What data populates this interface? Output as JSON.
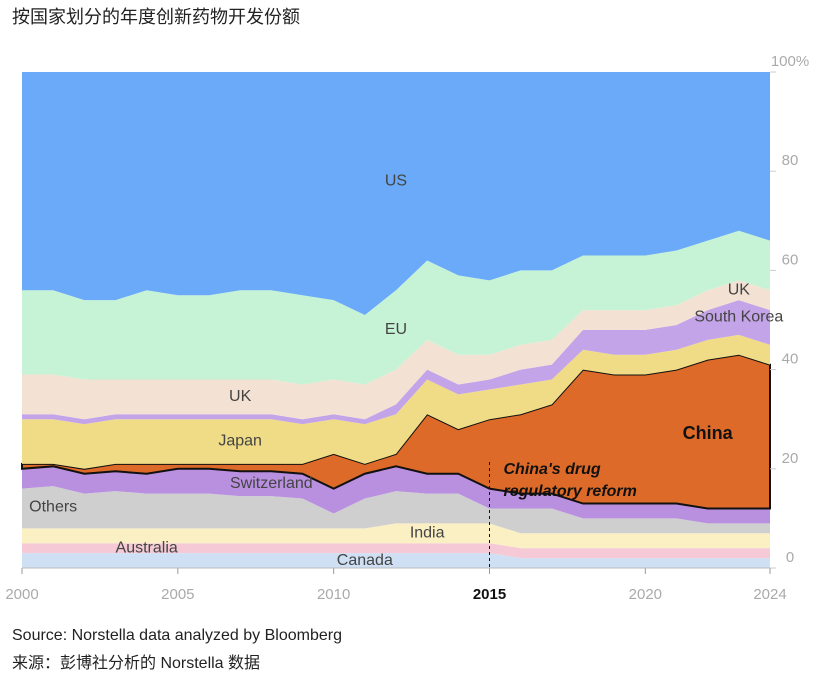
{
  "chart_data": {
    "type": "area",
    "stacked": true,
    "title": "按国家划分的年度创新药物开发份额",
    "source": "Source: Norstella data analyzed by Bloomberg",
    "source_cn": "来源：彭博社分析的 Norstella 数据",
    "annotation": [
      "China's drug",
      "regulatory reform"
    ],
    "annotation_x": 2015,
    "x": [
      2000,
      2001,
      2002,
      2003,
      2004,
      2005,
      2006,
      2007,
      2008,
      2009,
      2010,
      2011,
      2012,
      2013,
      2014,
      2015,
      2016,
      2017,
      2018,
      2019,
      2020,
      2021,
      2022,
      2023,
      2024
    ],
    "xlim": [
      2000,
      2024
    ],
    "xticks": [
      2000,
      2005,
      2010,
      2015,
      2020,
      2024
    ],
    "ylim": [
      0,
      100
    ],
    "yticks": [
      0,
      20,
      40,
      60,
      80,
      {
        "value": 100,
        "label": "100%"
      }
    ],
    "series": [
      {
        "name": "Canada",
        "color": "#cfe0f5",
        "values": [
          3,
          3,
          3,
          3,
          3,
          3,
          3,
          3,
          3,
          3,
          3,
          3,
          3,
          3,
          3,
          3,
          2,
          2,
          2,
          2,
          2,
          2,
          2,
          2,
          2
        ]
      },
      {
        "name": "Australia",
        "color": "#f5cad6",
        "values": [
          2,
          2,
          2,
          2,
          2,
          2,
          2,
          2,
          2,
          2,
          2,
          2,
          2,
          2,
          2,
          2,
          2,
          2,
          2,
          2,
          2,
          2,
          2,
          2,
          2
        ]
      },
      {
        "name": "India",
        "color": "#fbefc4",
        "values": [
          3,
          3,
          3,
          3,
          3,
          3,
          3,
          3,
          3,
          3,
          3,
          3,
          4,
          4,
          4,
          4,
          3,
          3,
          3,
          3,
          3,
          3,
          3,
          3,
          3
        ]
      },
      {
        "name": "Others",
        "color": "#cfcfcf",
        "values": [
          8,
          8.5,
          7,
          7.5,
          7,
          7,
          7,
          6.5,
          6.5,
          6,
          3,
          6,
          6.5,
          6,
          6,
          3,
          5,
          5,
          3,
          3,
          3,
          3,
          2,
          2,
          2
        ]
      },
      {
        "name": "Switzerland",
        "color": "#b98fe0",
        "values": [
          4,
          4,
          4,
          4,
          4,
          5,
          5,
          5,
          5,
          5,
          5,
          5,
          5,
          4,
          4,
          4,
          3,
          3,
          3,
          3,
          3,
          3,
          3,
          3,
          3
        ]
      },
      {
        "name": "China",
        "color": "#dd6a28",
        "values": [
          1,
          0.5,
          1,
          1.5,
          2,
          1,
          1,
          1.5,
          1.5,
          2,
          7,
          2,
          2.5,
          12,
          9,
          14,
          16,
          18,
          27,
          26,
          26,
          27,
          30,
          31,
          29
        ]
      },
      {
        "name": "Japan",
        "color": "#f0dc86",
        "values": [
          9,
          9,
          9,
          9,
          9,
          9,
          9,
          9,
          9,
          8,
          7,
          8,
          8,
          7,
          7,
          6,
          6,
          5,
          4,
          4,
          4,
          4,
          4,
          4,
          4
        ]
      },
      {
        "name": "South Korea",
        "color": "#c4a4e8",
        "values": [
          1,
          1,
          1,
          1,
          1,
          1,
          1,
          1,
          1,
          1,
          1,
          1,
          2,
          2,
          2,
          2,
          3,
          3,
          4,
          5,
          5,
          5,
          6,
          7,
          7
        ]
      },
      {
        "name": "UK",
        "color": "#f3e2d4",
        "values": [
          8,
          8,
          8,
          7,
          7,
          7,
          7,
          7,
          7,
          7,
          7,
          7,
          7,
          6,
          6,
          5,
          5,
          5,
          4,
          4,
          4,
          4,
          4,
          4,
          4
        ]
      },
      {
        "name": "EU",
        "color": "#c6f3d5",
        "values": [
          17,
          17,
          16,
          16,
          18,
          17,
          17,
          18,
          18,
          18,
          16,
          14,
          16,
          16,
          16,
          15,
          15,
          14,
          11,
          11,
          11,
          11,
          10,
          10,
          10
        ]
      },
      {
        "name": "US",
        "color": "#6aaaf8",
        "values": [
          44,
          44,
          46,
          46,
          44,
          45,
          45,
          44,
          44,
          45,
          46,
          49,
          44,
          38,
          41,
          42,
          40,
          40,
          37,
          37,
          37,
          36,
          34,
          32,
          34
        ]
      }
    ]
  }
}
